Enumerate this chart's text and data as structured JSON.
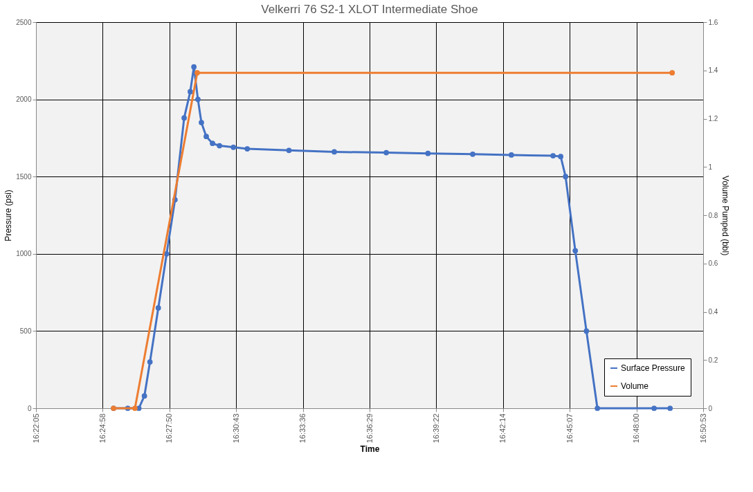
{
  "chart_data": {
    "type": "line",
    "title": "Velkerri 76 S2-1 XLOT Intermediate Shoe",
    "xlabel": "Time",
    "ylabel": "Pressure (psi)",
    "y2label": "Volume Pumped (bbl)",
    "xlim": [
      16.368,
      16.848
    ],
    "xticks": [
      {
        "value": 16.368,
        "label": "16:22:05"
      },
      {
        "value": 16.416,
        "label": "16:24:58"
      },
      {
        "value": 16.464,
        "label": "16:27:50"
      },
      {
        "value": 16.512,
        "label": "16:30:43"
      },
      {
        "value": 16.56,
        "label": "16:33:36"
      },
      {
        "value": 16.608,
        "label": "16:36:29"
      },
      {
        "value": 16.656,
        "label": "16:39:22"
      },
      {
        "value": 16.704,
        "label": "16:42:14"
      },
      {
        "value": 16.752,
        "label": "16:45:07"
      },
      {
        "value": 16.8,
        "label": "16:48:00"
      },
      {
        "value": 16.848,
        "label": "16:50:53"
      }
    ],
    "ylim": [
      0,
      2500
    ],
    "yticks": [
      0,
      500,
      1000,
      1500,
      2000,
      2500
    ],
    "y2lim": [
      0,
      1.6
    ],
    "y2ticks": [
      0,
      0.2,
      0.4,
      0.6,
      0.8,
      1,
      1.2,
      1.4,
      1.6
    ],
    "grid": true,
    "legend": "bottom right",
    "marker": "circle",
    "line_style": "solid",
    "series": [
      {
        "name": "Surface Pressure",
        "color": "#4472c4",
        "x": [
          16.4238,
          16.434,
          16.442,
          16.446,
          16.45,
          16.456,
          16.462,
          16.468,
          16.4746,
          16.479,
          16.4816,
          16.4845,
          16.487,
          16.4905,
          16.495,
          16.5,
          16.51,
          16.52,
          16.55,
          16.5826,
          16.62,
          16.65,
          16.6822,
          16.71,
          16.74,
          16.7455,
          16.749,
          16.756,
          16.764,
          16.7719,
          16.8127,
          16.8242
        ],
        "values": [
          0,
          0,
          0,
          80,
          300,
          650,
          1000,
          1350,
          1880,
          2050,
          2210,
          2000,
          1850,
          1760,
          1715,
          1700,
          1690,
          1680,
          1670,
          1660,
          1655,
          1650,
          1645,
          1640,
          1635,
          1630,
          1500,
          1020,
          500,
          0,
          0,
          0
        ]
      },
      {
        "name": "Volume",
        "color": "#ed7d31",
        "axis": "y2",
        "x": [
          16.4238,
          16.4392,
          16.484,
          16.8257
        ],
        "values": [
          0,
          0,
          1.39,
          1.39
        ]
      }
    ]
  }
}
